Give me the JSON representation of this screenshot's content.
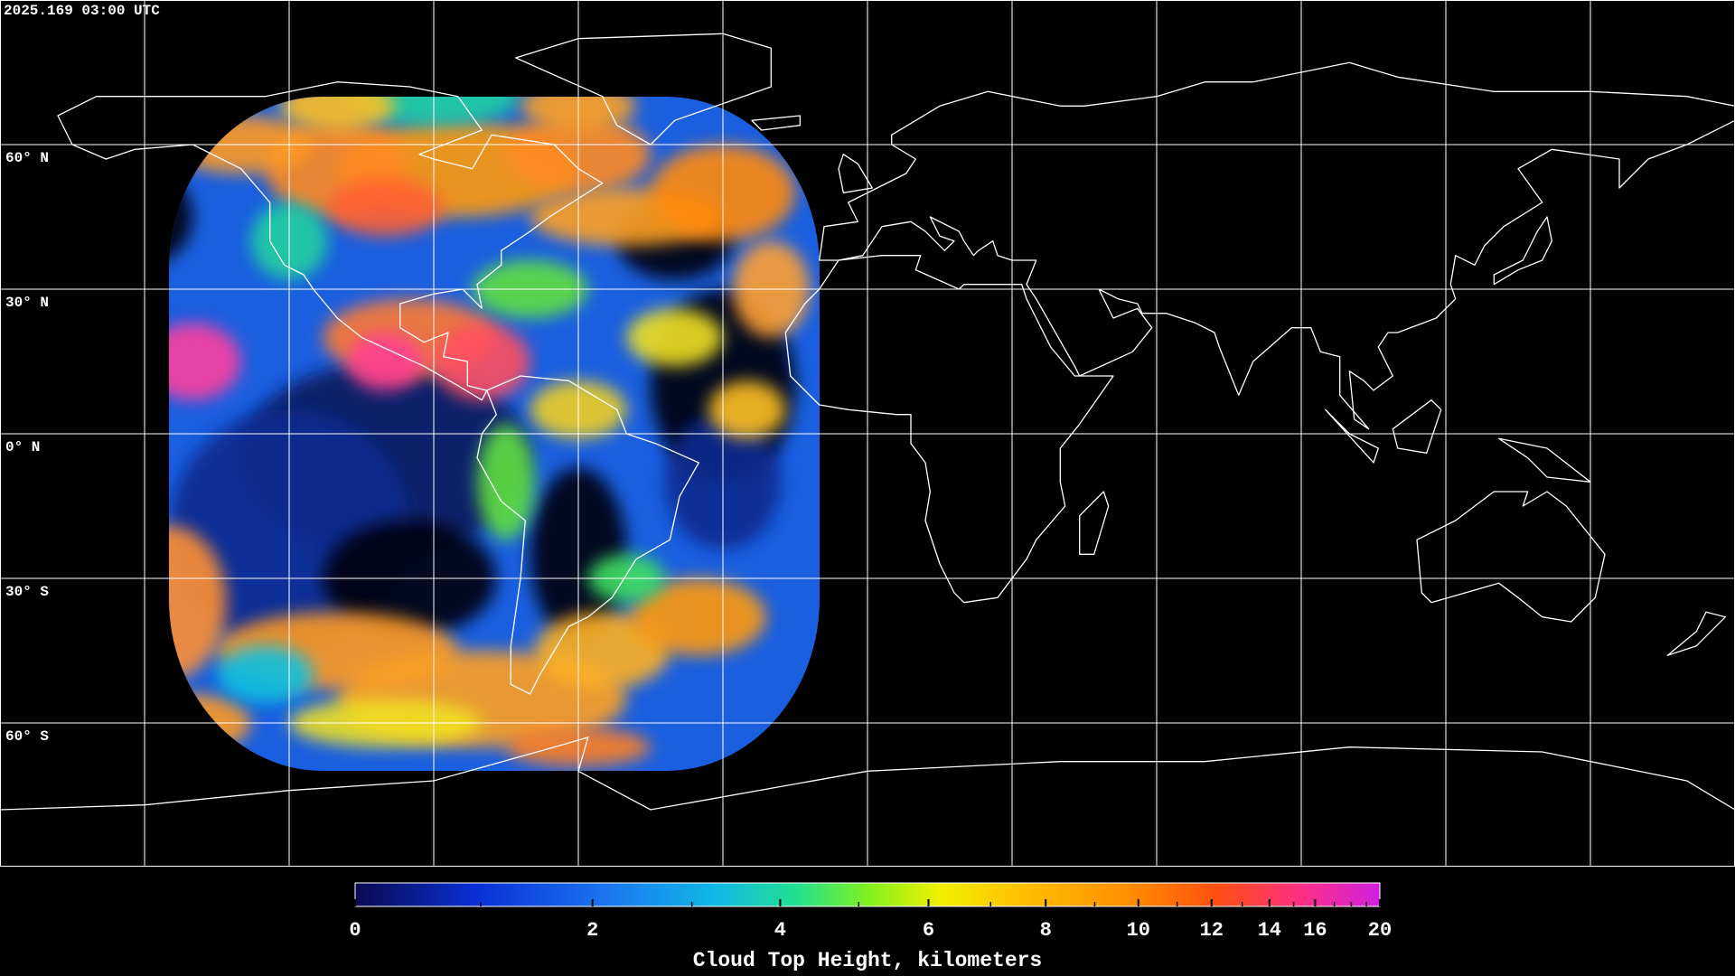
{
  "header": {
    "timestamp": "2025.169 03:00 UTC"
  },
  "map": {
    "lat_grid": [
      {
        "value": 60,
        "label": "60° N"
      },
      {
        "value": 30,
        "label": "30° N"
      },
      {
        "value": 0,
        "label": "0° N"
      },
      {
        "value": -30,
        "label": "30° S"
      },
      {
        "value": -60,
        "label": "60° S"
      }
    ],
    "lon_grid": [
      -150,
      -120,
      -90,
      -60,
      -30,
      0,
      30,
      60,
      90,
      120,
      150
    ]
  },
  "colorbar": {
    "title": "Cloud Top Height, kilometers",
    "range": [
      0,
      20
    ],
    "ticks": [
      0,
      2,
      4,
      6,
      8,
      10,
      12,
      14,
      16,
      20
    ],
    "minor_ticks": [
      1,
      3,
      5,
      7,
      9,
      11,
      13,
      15,
      17,
      18,
      19
    ]
  }
}
